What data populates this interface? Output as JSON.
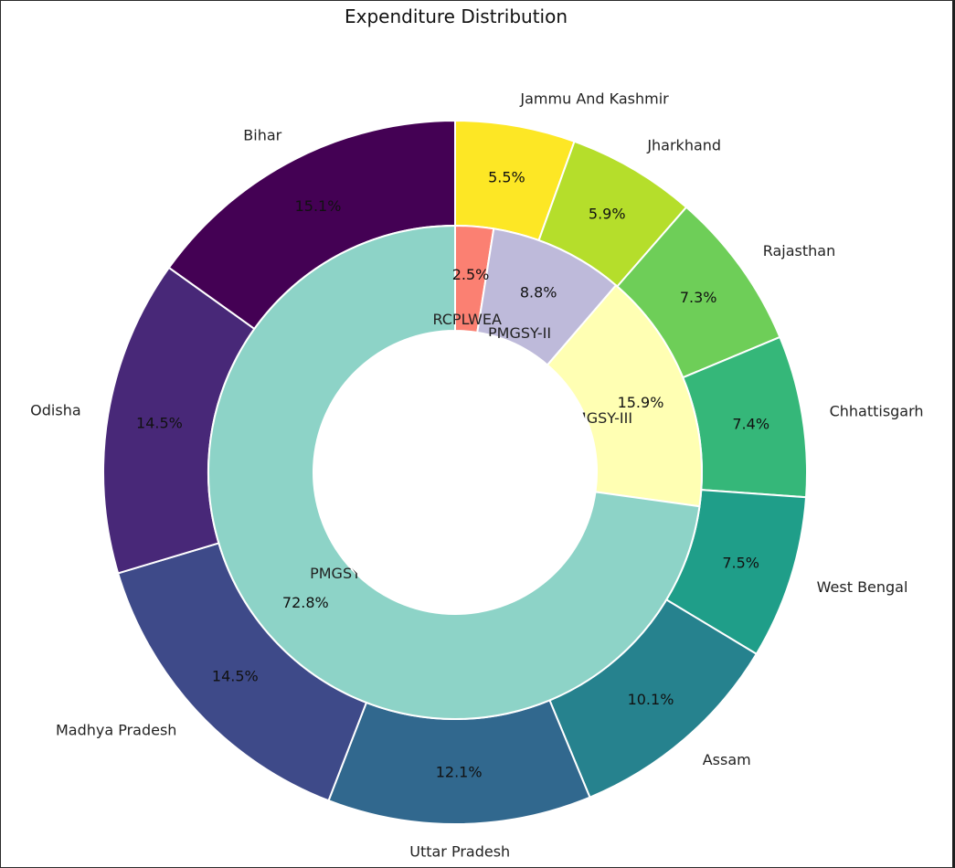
{
  "chart_data": {
    "type": "pie",
    "title": "Expenditure Distribution",
    "style": "nested-donut",
    "outer_ring": {
      "name": "States",
      "slices": [
        {
          "label": "Jammu And Kashmir",
          "value": 5.5,
          "pct_text": "5.5%",
          "color": "#fde725"
        },
        {
          "label": "Jharkhand",
          "value": 5.9,
          "pct_text": "5.9%",
          "color": "#b5de2b"
        },
        {
          "label": "Rajasthan",
          "value": 7.3,
          "pct_text": "7.3%",
          "color": "#6ece58"
        },
        {
          "label": "Chhattisgarh",
          "value": 7.4,
          "pct_text": "7.4%",
          "color": "#35b779"
        },
        {
          "label": "West Bengal",
          "value": 7.5,
          "pct_text": "7.5%",
          "color": "#1f9e89"
        },
        {
          "label": "Assam",
          "value": 10.1,
          "pct_text": "10.1%",
          "color": "#26828e"
        },
        {
          "label": "Uttar Pradesh",
          "value": 12.1,
          "pct_text": "12.1%",
          "color": "#31688e"
        },
        {
          "label": "Madhya Pradesh",
          "value": 14.5,
          "pct_text": "14.5%",
          "color": "#3e4a89"
        },
        {
          "label": "Odisha",
          "value": 14.5,
          "pct_text": "14.5%",
          "color": "#482878"
        },
        {
          "label": "Bihar",
          "value": 15.1,
          "pct_text": "15.1%",
          "color": "#440154"
        }
      ]
    },
    "inner_ring": {
      "name": "Schemes",
      "slices": [
        {
          "label": "RCPLWEA",
          "value": 2.5,
          "pct_text": "2.5%",
          "color": "#fb8072"
        },
        {
          "label": "PMGSY-II",
          "value": 8.8,
          "pct_text": "8.8%",
          "color": "#bebada"
        },
        {
          "label": "PMGSY-III",
          "value": 15.9,
          "pct_text": "15.9%",
          "color": "#ffffb3"
        },
        {
          "label": "PMGSY-I",
          "value": 72.8,
          "pct_text": "72.8%",
          "color": "#8dd3c7"
        }
      ]
    }
  }
}
